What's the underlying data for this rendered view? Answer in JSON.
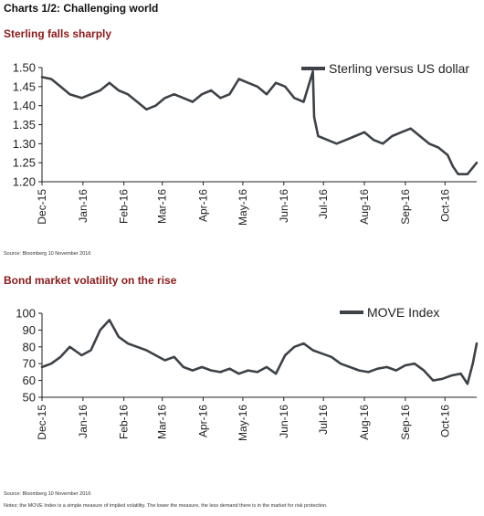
{
  "page": {
    "title": "Charts 1/2: Challenging world",
    "notes": "Notes: the MOVE Index is a simple measure of implied volatility. The lower the measure, the less demand there is in the market for risk protection."
  },
  "colors": {
    "line": "#3d4248",
    "title": "#8b1a1a",
    "axis": "#222222"
  },
  "chart_data": [
    {
      "type": "line",
      "title": "Sterling falls sharply",
      "source": "Source: Bloomberg 10 November 2016",
      "legend_position": "top-right",
      "grid": false,
      "ylim": [
        1.2,
        1.5
      ],
      "xlim": [
        "2015-12-01",
        "2016-10-25"
      ],
      "yticks": [
        "1.20",
        "1.25",
        "1.30",
        "1.35",
        "1.40",
        "1.45",
        "1.50"
      ],
      "xticks": [
        "Dec-15",
        "Jan-16",
        "Feb-16",
        "Mar-16",
        "Apr-16",
        "May-16",
        "Jun-16",
        "Jul-16",
        "Aug-16",
        "Sep-16",
        "Oct-16"
      ],
      "series": [
        {
          "name": "Sterling versus US dollar",
          "x": [
            "2015-12-01",
            "2015-12-08",
            "2015-12-15",
            "2015-12-22",
            "2015-12-31",
            "2016-01-07",
            "2016-01-14",
            "2016-01-21",
            "2016-01-28",
            "2016-02-04",
            "2016-02-11",
            "2016-02-18",
            "2016-02-25",
            "2016-03-03",
            "2016-03-10",
            "2016-03-17",
            "2016-03-24",
            "2016-03-31",
            "2016-04-07",
            "2016-04-14",
            "2016-04-21",
            "2016-04-28",
            "2016-05-05",
            "2016-05-12",
            "2016-05-19",
            "2016-05-26",
            "2016-06-02",
            "2016-06-09",
            "2016-06-16",
            "2016-06-23",
            "2016-06-24",
            "2016-06-27",
            "2016-07-04",
            "2016-07-11",
            "2016-07-18",
            "2016-07-25",
            "2016-08-01",
            "2016-08-08",
            "2016-08-15",
            "2016-08-22",
            "2016-08-29",
            "2016-09-05",
            "2016-09-12",
            "2016-09-19",
            "2016-09-26",
            "2016-10-03",
            "2016-10-07",
            "2016-10-11",
            "2016-10-18",
            "2016-10-25"
          ],
          "y": [
            1.475,
            1.47,
            1.45,
            1.43,
            1.42,
            1.43,
            1.44,
            1.46,
            1.44,
            1.43,
            1.41,
            1.39,
            1.4,
            1.42,
            1.43,
            1.42,
            1.41,
            1.43,
            1.44,
            1.42,
            1.43,
            1.47,
            1.46,
            1.45,
            1.43,
            1.46,
            1.45,
            1.42,
            1.41,
            1.49,
            1.37,
            1.32,
            1.31,
            1.3,
            1.31,
            1.32,
            1.33,
            1.31,
            1.3,
            1.32,
            1.33,
            1.34,
            1.32,
            1.3,
            1.29,
            1.27,
            1.24,
            1.22,
            1.22,
            1.25
          ]
        }
      ]
    },
    {
      "type": "line",
      "title": "Bond market volatility on the rise",
      "source": "Source: Bloomberg 10 November 2016",
      "legend_position": "top-right",
      "grid": false,
      "ylim": [
        50,
        100
      ],
      "xlim": [
        "2015-12-01",
        "2016-10-25"
      ],
      "yticks": [
        "50",
        "60",
        "70",
        "80",
        "90",
        "100"
      ],
      "xticks": [
        "Dec-15",
        "Jan-16",
        "Feb-16",
        "Mar-16",
        "Apr-16",
        "May-16",
        "Jun-16",
        "Jul-16",
        "Aug-16",
        "Sep-16",
        "Oct-16"
      ],
      "series": [
        {
          "name": "MOVE Index",
          "x": [
            "2015-12-01",
            "2015-12-08",
            "2015-12-15",
            "2015-12-22",
            "2015-12-31",
            "2016-01-07",
            "2016-01-14",
            "2016-01-21",
            "2016-01-28",
            "2016-02-04",
            "2016-02-11",
            "2016-02-18",
            "2016-02-25",
            "2016-03-03",
            "2016-03-10",
            "2016-03-17",
            "2016-03-24",
            "2016-03-31",
            "2016-04-07",
            "2016-04-14",
            "2016-04-21",
            "2016-04-28",
            "2016-05-05",
            "2016-05-12",
            "2016-05-19",
            "2016-05-26",
            "2016-06-02",
            "2016-06-09",
            "2016-06-16",
            "2016-06-23",
            "2016-06-30",
            "2016-07-07",
            "2016-07-14",
            "2016-07-21",
            "2016-07-28",
            "2016-08-04",
            "2016-08-11",
            "2016-08-18",
            "2016-08-25",
            "2016-09-01",
            "2016-09-08",
            "2016-09-15",
            "2016-09-22",
            "2016-09-29",
            "2016-10-06",
            "2016-10-13",
            "2016-10-18",
            "2016-10-22",
            "2016-10-25"
          ],
          "y": [
            68,
            70,
            74,
            80,
            75,
            78,
            90,
            96,
            86,
            82,
            80,
            78,
            75,
            72,
            74,
            68,
            66,
            68,
            66,
            65,
            67,
            64,
            66,
            65,
            68,
            64,
            75,
            80,
            82,
            78,
            76,
            74,
            70,
            68,
            66,
            65,
            67,
            68,
            66,
            69,
            70,
            66,
            60,
            61,
            63,
            64,
            58,
            70,
            82
          ]
        }
      ]
    }
  ]
}
